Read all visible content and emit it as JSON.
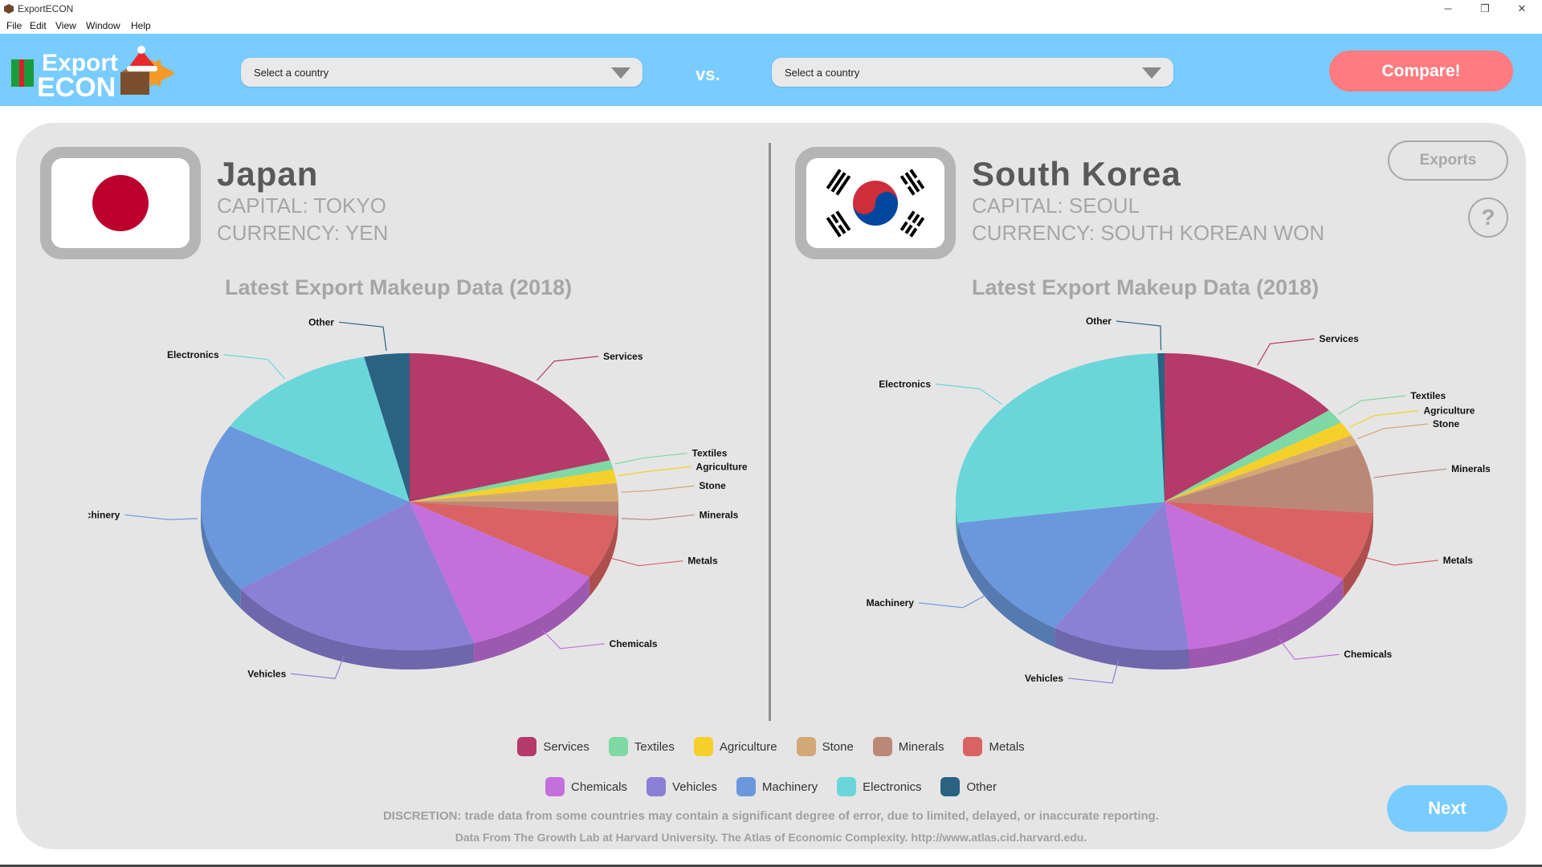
{
  "window": {
    "title": "ExportECON",
    "controls": [
      "─",
      "❐",
      "✕"
    ]
  },
  "menu": [
    "File",
    "Edit",
    "View",
    "Window",
    "Help"
  ],
  "logo": {
    "line1": "Export",
    "line2": "ECON"
  },
  "selectors": {
    "left_placeholder": "Select a country",
    "right_placeholder": "Select a country",
    "vs": "vs."
  },
  "compare_label": "Compare!",
  "left": {
    "name": "Japan",
    "capital": "CAPITAL: TOKYO",
    "currency": "CURRENCY: YEN",
    "chart_title": "Latest Export Makeup Data (2018)"
  },
  "right": {
    "name": "South Korea",
    "capital": "CAPITAL: SEOUL",
    "currency": "CURRENCY: SOUTH KOREAN WON",
    "chart_title": "Latest Export Makeup Data (2018)"
  },
  "exports_label": "Exports",
  "help_label": "?",
  "next_label": "Next",
  "legend_row1": [
    "Services",
    "Textiles",
    "Agriculture",
    "Stone",
    "Minerals",
    "Metals"
  ],
  "legend_row2": [
    "Chemicals",
    "Vehicles",
    "Machinery",
    "Electronics",
    "Other"
  ],
  "colors": {
    "Services": "#b43a6a",
    "Textiles": "#7ed9a4",
    "Agriculture": "#f5d02a",
    "Stone": "#d2a877",
    "Minerals": "#bb8877",
    "Metals": "#d96363",
    "Chemicals": "#c46fdb",
    "Vehicles": "#8b7fd6",
    "Machinery": "#6b97dc",
    "Electronics": "#6bd6da",
    "Other": "#2a6282"
  },
  "disclaimer": "DISCRETION: trade data from some countries may contain a significant degree of error, due to limited, delayed, or inaccurate reporting.",
  "source": "Data From The Growth Lab at Harvard University. The Atlas of Economic Complexity. http://www.atlas.cid.harvard.edu.",
  "chart_data": [
    {
      "type": "pie",
      "title": "Latest Export Makeup Data (2018)",
      "categories": [
        "Services",
        "Textiles",
        "Agriculture",
        "Stone",
        "Minerals",
        "Metals",
        "Chemicals",
        "Vehicles",
        "Machinery",
        "Electronics",
        "Other"
      ],
      "values": [
        20.5,
        1.0,
        1.5,
        2.0,
        1.5,
        7.0,
        11.5,
        20.0,
        18.5,
        13.0,
        3.5
      ]
    },
    {
      "type": "pie",
      "title": "Latest Export Makeup Data (2018)",
      "categories": [
        "Services",
        "Textiles",
        "Agriculture",
        "Stone",
        "Minerals",
        "Metals",
        "Chemicals",
        "Vehicles",
        "Machinery",
        "Electronics",
        "Other"
      ],
      "values": [
        13.5,
        1.5,
        1.5,
        1.0,
        7.0,
        7.0,
        13.5,
        10.0,
        13.0,
        25.0,
        0.5
      ]
    }
  ]
}
